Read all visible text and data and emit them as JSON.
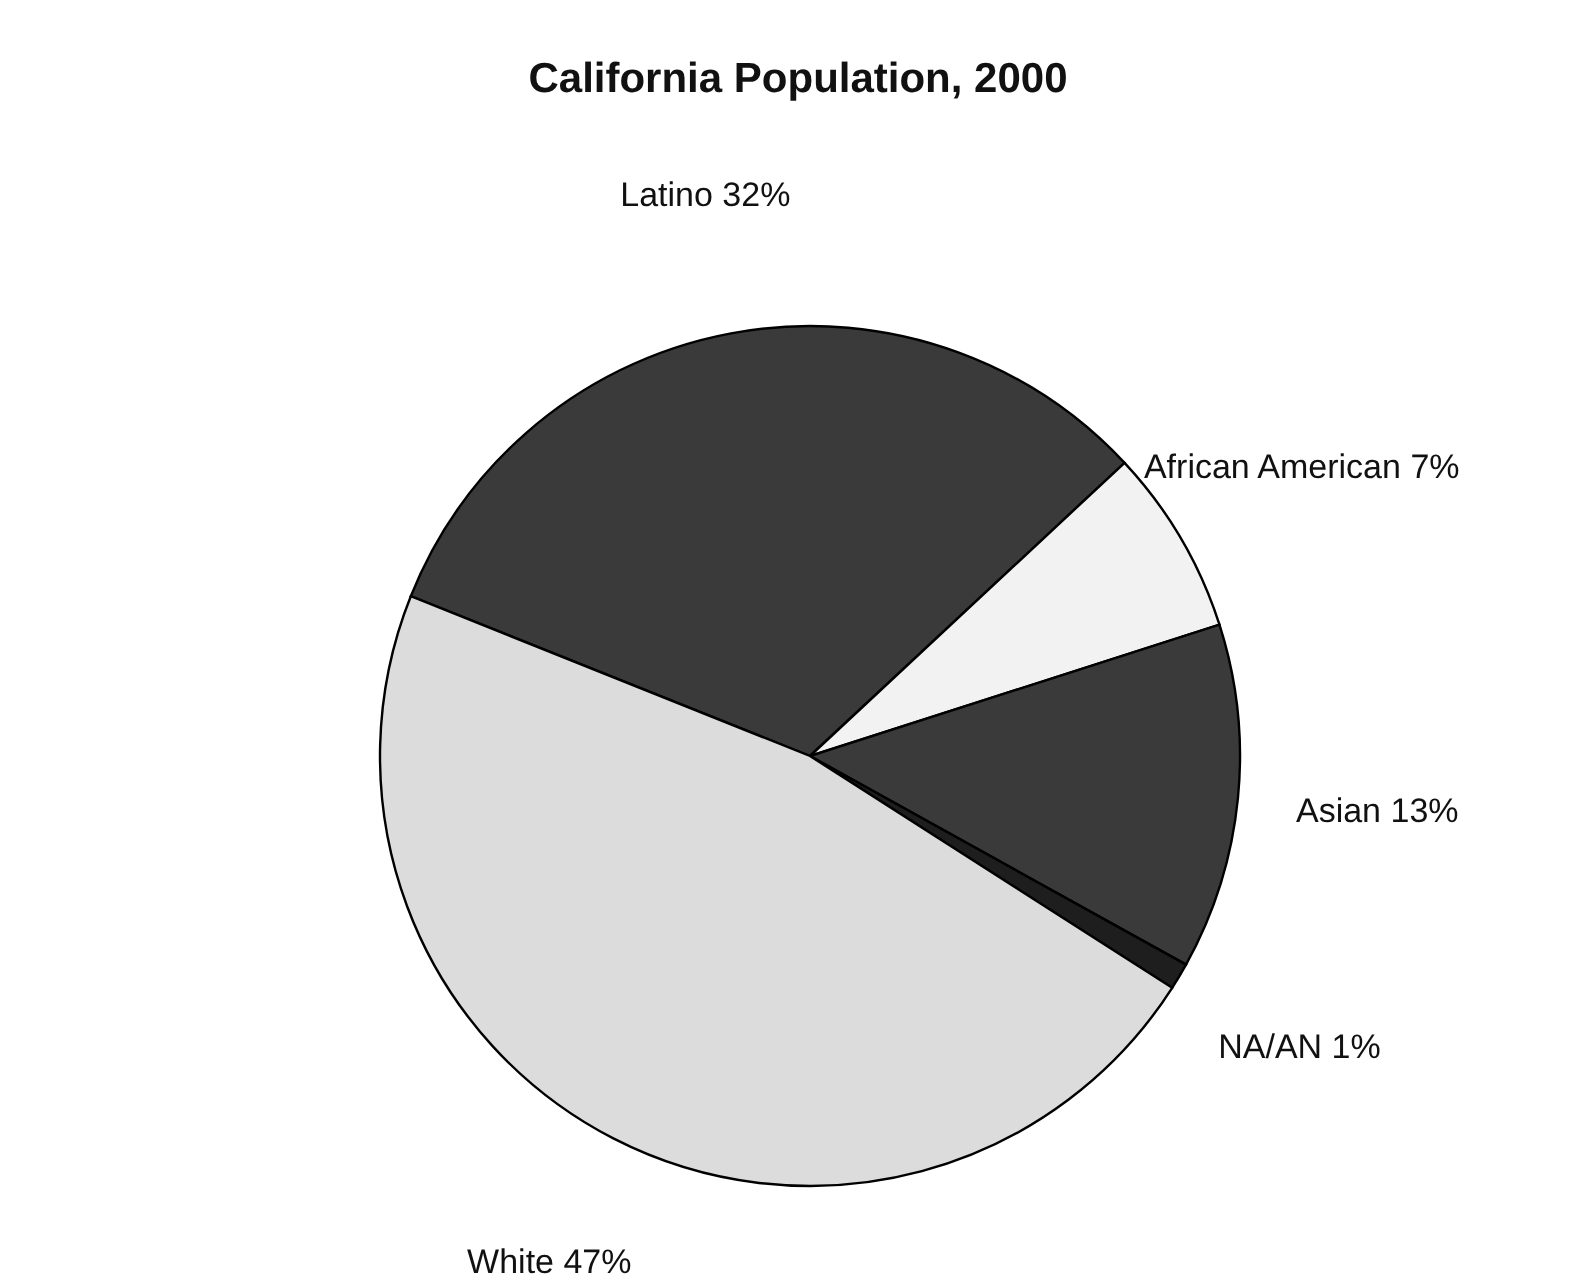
{
  "chart_data": {
    "type": "pie",
    "title": "California Population, 2000",
    "categories": [
      "Latino",
      "African American",
      "Asian",
      "NA/AN",
      "White"
    ],
    "values": [
      32,
      7,
      13,
      1,
      47
    ],
    "value_labels": [
      "32%",
      "7%",
      "13%",
      "1%",
      "47%"
    ],
    "colors": [
      "#3a3a3a",
      "#f2f2f2",
      "#3a3a3a",
      "#1e1e1e",
      "#dcdcdc"
    ],
    "legend": false
  }
}
